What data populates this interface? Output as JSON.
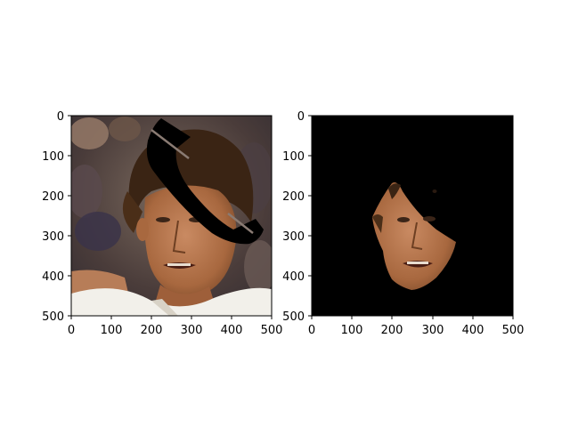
{
  "figure": {
    "background": "#ffffff",
    "panels": [
      {
        "name": "original-image-with-occluder",
        "image_description": "photo of a man's face with dark curly hair, white shirt, blurred stadium background; a black telephone-handset-shaped occluder crosses the upper right of the face",
        "x_ticks": [
          "0",
          "100",
          "200",
          "300",
          "400",
          "500"
        ],
        "y_ticks": [
          "0",
          "100",
          "200",
          "300",
          "400",
          "500"
        ],
        "xlim": [
          0,
          500
        ],
        "ylim": [
          500,
          0
        ]
      },
      {
        "name": "segmented-face-mask",
        "image_description": "black background with only the segmented face region of the man visible; the area hidden by the occluder is removed",
        "x_ticks": [
          "0",
          "100",
          "200",
          "300",
          "400",
          "500"
        ],
        "y_ticks": [
          "0",
          "100",
          "200",
          "300",
          "400",
          "500"
        ],
        "xlim": [
          0,
          500
        ],
        "ylim": [
          500,
          0
        ]
      }
    ],
    "colors": {
      "axis": "#000000",
      "mask_background": "#000000",
      "skin": "#b97a55",
      "hair": "#3a2414",
      "shirt": "#f2f0ea"
    }
  }
}
